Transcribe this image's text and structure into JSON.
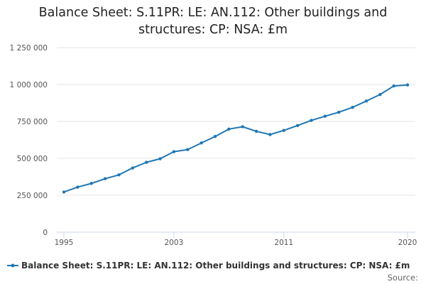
{
  "chart_data": {
    "type": "line",
    "title": "Balance Sheet: S.11PR: LE: AN.112: Other buildings and structures: CP: NSA: £m",
    "title_lines": [
      "Balance Sheet: S.11PR: LE: AN.112: Other buildings and",
      "structures: CP: NSA: £m"
    ],
    "xlabel": "",
    "ylabel": "",
    "x": [
      1995,
      1996,
      1997,
      1998,
      1999,
      2000,
      2001,
      2002,
      2003,
      2004,
      2005,
      2006,
      2007,
      2008,
      2009,
      2010,
      2011,
      2012,
      2013,
      2014,
      2015,
      2016,
      2017,
      2018,
      2019,
      2020
    ],
    "xlim": [
      1995,
      2020
    ],
    "x_ticks": [
      1995,
      2003,
      2011,
      2020
    ],
    "ylim": [
      0,
      1250000
    ],
    "y_ticks": [
      0,
      250000,
      500000,
      750000,
      1000000,
      1250000
    ],
    "y_tick_labels": [
      "0",
      "250 000",
      "500 000",
      "750 000",
      "1 000 000",
      "1 250 000"
    ],
    "grid": true,
    "legend_position": "bottom",
    "series": [
      {
        "name": "Balance Sheet: S.11PR: LE: AN.112: Other buildings and structures: CP: NSA: £m",
        "color": "#1f77b4",
        "values": [
          272000,
          305000,
          330000,
          362000,
          388000,
          435000,
          473000,
          497000,
          545000,
          559000,
          604000,
          648000,
          698000,
          714000,
          683000,
          661000,
          689000,
          722000,
          757000,
          785000,
          812000,
          845000,
          888000,
          932000,
          990000,
          997000
        ]
      }
    ],
    "source_label": "Source:"
  }
}
